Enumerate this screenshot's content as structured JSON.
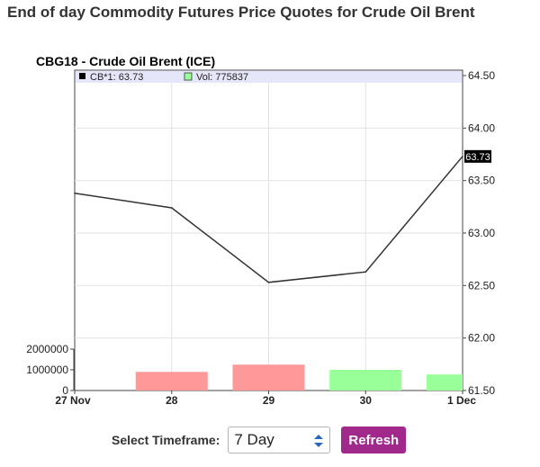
{
  "page": {
    "title": "End of day Commodity Futures Price Quotes for Crude Oil Brent"
  },
  "chart_data": {
    "type": "line",
    "title": "CBG18 - Crude Oil Brent (ICE)",
    "legend": {
      "placement": "top-left",
      "items": [
        {
          "label": "CB*1: 63.73",
          "color": "#000000"
        },
        {
          "label": "Vol: 775837",
          "color": "#99ff99"
        }
      ]
    },
    "categories": [
      "27 Nov",
      "28",
      "29",
      "30",
      "1 Dec"
    ],
    "series": [
      {
        "name": "CB*1",
        "values": [
          63.38,
          63.24,
          62.53,
          62.63,
          63.73
        ],
        "color": "#333333"
      }
    ],
    "volume": {
      "name": "Vol",
      "bars": [
        {
          "x": "28",
          "value": 900000,
          "color": "#ff9999"
        },
        {
          "x": "29",
          "value": 1250000,
          "color": "#ff9999"
        },
        {
          "x": "30",
          "value": 1000000,
          "color": "#99ff99"
        },
        {
          "x": "1 Dec",
          "value": 775837,
          "color": "#99ff99"
        }
      ],
      "ticks": [
        "2000000",
        "1000000",
        "0"
      ],
      "range": [
        0,
        2000000
      ]
    },
    "ylim": [
      61.5,
      64.5
    ],
    "y_ticks": [
      "61.50",
      "62.00",
      "62.50",
      "63.00",
      "63.50",
      "64.00",
      "64.50"
    ],
    "last_price_label": "63.73",
    "last_price": 63.73,
    "grid": true,
    "xlabel": "",
    "ylabel": ""
  },
  "controls": {
    "timeframe_label": "Select Timeframe:",
    "timeframe_value": "7 Day",
    "refresh_label": "Refresh"
  }
}
